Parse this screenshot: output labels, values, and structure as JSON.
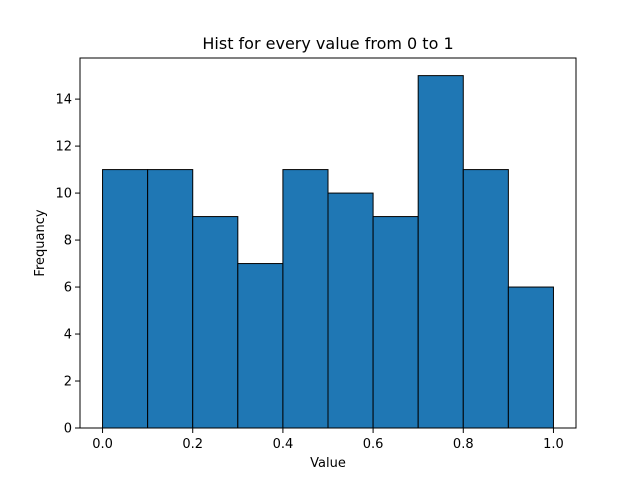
{
  "chart_data": {
    "type": "bar",
    "title": "Hist for every value from 0 to 1",
    "xlabel": "Value",
    "ylabel": "Frequancy",
    "bin_edges": [
      0.0,
      0.1,
      0.2,
      0.3,
      0.4,
      0.5,
      0.6,
      0.7,
      0.8,
      0.9,
      1.0
    ],
    "values": [
      11,
      11,
      9,
      7,
      11,
      10,
      9,
      15,
      11,
      6
    ],
    "xlim": [
      -0.05,
      1.05
    ],
    "ylim": [
      0,
      15.75
    ],
    "xticks": [
      0.0,
      0.2,
      0.4,
      0.6,
      0.8,
      1.0
    ],
    "xtick_labels": [
      "0.0",
      "0.2",
      "0.4",
      "0.6",
      "0.8",
      "1.0"
    ],
    "yticks": [
      0,
      2,
      4,
      6,
      8,
      10,
      12,
      14
    ],
    "ytick_labels": [
      "0",
      "2",
      "4",
      "6",
      "8",
      "10",
      "12",
      "14"
    ],
    "grid": false,
    "bar_color": "#1f77b4",
    "edge_color": "#000000"
  }
}
